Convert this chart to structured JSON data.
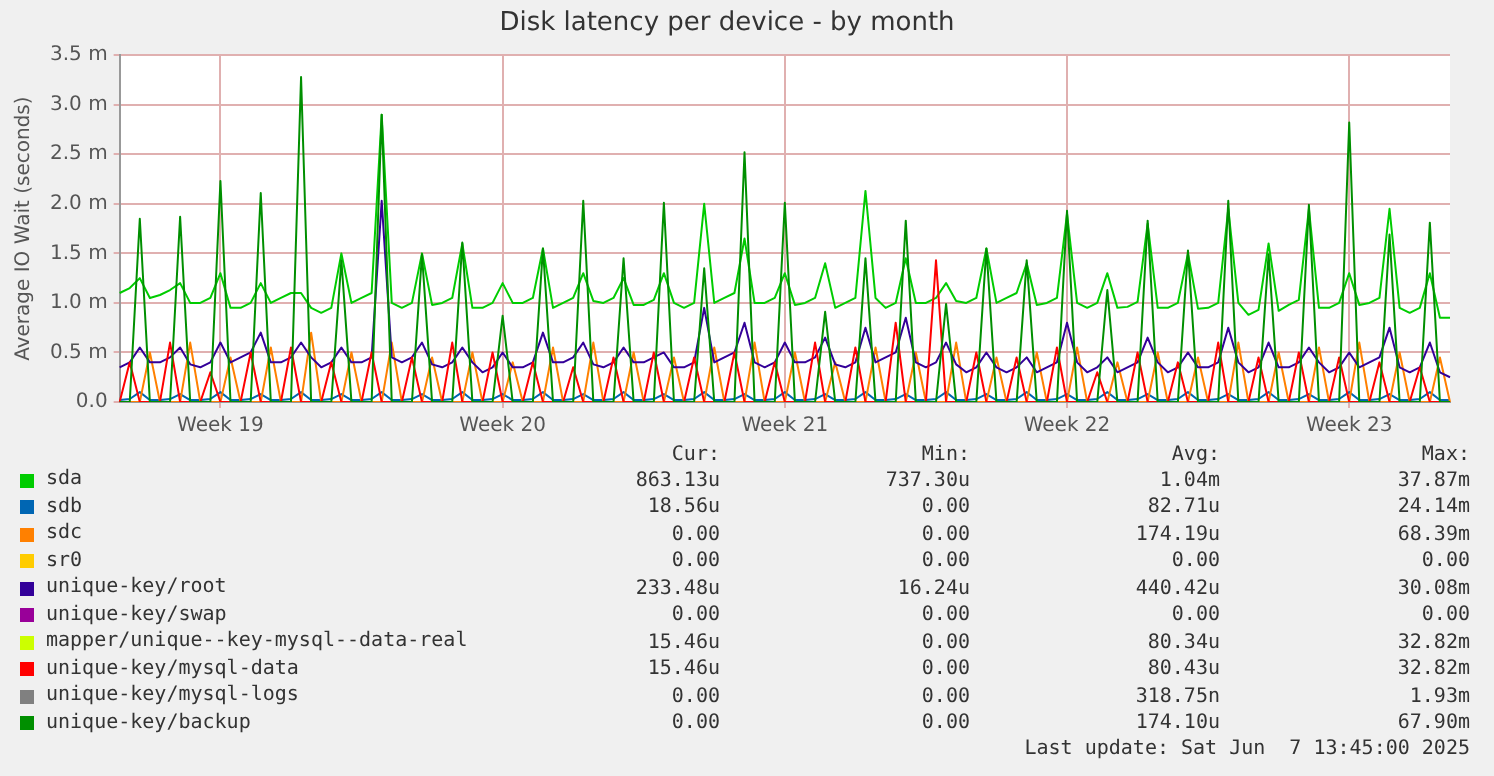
{
  "chart_data": {
    "type": "line",
    "title": "Disk latency per device - by month",
    "ylabel": "Average IO Wait (seconds)",
    "categories": [
      null,
      null,
      null,
      null,
      null,
      null,
      null,
      null,
      null,
      null,
      "Week 19",
      null,
      null,
      null,
      null,
      null,
      null,
      null,
      null,
      null,
      null,
      null,
      null,
      null,
      null,
      null,
      null,
      null,
      null,
      null,
      null,
      null,
      null,
      null,
      null,
      null,
      null,
      null,
      "Week 20",
      null,
      null,
      null,
      null,
      null,
      null,
      null,
      null,
      null,
      null,
      null,
      null,
      null,
      null,
      null,
      null,
      null,
      null,
      null,
      null,
      null,
      null,
      null,
      null,
      null,
      null,
      null,
      "Week 21",
      null,
      null,
      null,
      null,
      null,
      null,
      null,
      null,
      null,
      null,
      null,
      null,
      null,
      null,
      null,
      null,
      null,
      null,
      null,
      null,
      null,
      null,
      null,
      null,
      null,
      null,
      null,
      "Week 22",
      null,
      null,
      null,
      null,
      null,
      null,
      null,
      null,
      null,
      null,
      null,
      null,
      null,
      null,
      null,
      null,
      null,
      null,
      null,
      null,
      null,
      null,
      null,
      null,
      null,
      null,
      null,
      "Week 23",
      null,
      null,
      null,
      null,
      null,
      null,
      null,
      null,
      null,
      null
    ],
    "series": [
      {
        "name": "sda",
        "color": "#00cc00",
        "values": [
          1.1,
          1.15,
          1.25,
          1.05,
          1.08,
          1.13,
          1.2,
          1.0,
          1.0,
          1.05,
          1.3,
          0.95,
          0.95,
          1.0,
          1.2,
          1.0,
          1.05,
          1.1,
          1.1,
          0.95,
          0.9,
          0.95,
          1.5,
          1.0,
          1.05,
          1.1,
          2.9,
          1.0,
          0.95,
          1.0,
          1.5,
          0.98,
          1.0,
          1.05,
          1.6,
          0.95,
          0.95,
          1.0,
          1.2,
          1.0,
          1.0,
          1.05,
          1.55,
          0.95,
          1.0,
          1.05,
          1.3,
          1.02,
          1.0,
          1.05,
          1.25,
          0.98,
          0.98,
          1.03,
          1.3,
          1.0,
          0.95,
          1.0,
          2.0,
          1.0,
          1.05,
          1.1,
          1.65,
          1.0,
          1.0,
          1.05,
          1.3,
          0.98,
          1.0,
          1.05,
          1.4,
          0.95,
          1.0,
          1.05,
          2.13,
          1.05,
          0.95,
          1.0,
          1.45,
          1.0,
          1.0,
          1.05,
          1.2,
          1.02,
          1.0,
          1.05,
          1.55,
          1.0,
          1.05,
          1.1,
          1.4,
          0.98,
          1.0,
          1.05,
          1.9,
          1.0,
          0.95,
          1.0,
          1.3,
          0.95,
          0.96,
          1.01,
          1.8,
          0.95,
          0.95,
          1.0,
          1.5,
          0.94,
          0.95,
          1.0,
          1.95,
          1.0,
          0.88,
          0.93,
          1.6,
          0.92,
          0.98,
          1.03,
          1.95,
          0.95,
          0.95,
          1.0,
          1.3,
          0.98,
          1.0,
          1.05,
          1.95,
          0.95,
          0.9,
          0.95,
          1.3,
          0.85,
          0.85
        ]
      },
      {
        "name": "sdb",
        "color": "#0066b3",
        "values": [
          0.02,
          0.03,
          0.1,
          0.02,
          0.02,
          0.03,
          0.08,
          0.02,
          0.02,
          0.03,
          0.1,
          0.02,
          0.02,
          0.03,
          0.08,
          0.02,
          0.02,
          0.03,
          0.1,
          0.02,
          0.02,
          0.03,
          0.08,
          0.02,
          0.02,
          0.03,
          0.1,
          0.02,
          0.02,
          0.03,
          0.08,
          0.02,
          0.02,
          0.03,
          0.1,
          0.02,
          0.02,
          0.03,
          0.08,
          0.02,
          0.02,
          0.03,
          0.1,
          0.02,
          0.02,
          0.03,
          0.08,
          0.02,
          0.02,
          0.03,
          0.1,
          0.02,
          0.02,
          0.03,
          0.08,
          0.02,
          0.02,
          0.03,
          0.1,
          0.02,
          0.02,
          0.03,
          0.08,
          0.02,
          0.02,
          0.03,
          0.1,
          0.02,
          0.02,
          0.03,
          0.08,
          0.02,
          0.02,
          0.03,
          0.1,
          0.02,
          0.02,
          0.03,
          0.08,
          0.02,
          0.02,
          0.03,
          0.1,
          0.02,
          0.02,
          0.03,
          0.08,
          0.02,
          0.02,
          0.03,
          0.1,
          0.02,
          0.02,
          0.03,
          0.08,
          0.02,
          0.02,
          0.03,
          0.1,
          0.02,
          0.02,
          0.03,
          0.08,
          0.02,
          0.02,
          0.03,
          0.1,
          0.02,
          0.02,
          0.03,
          0.08,
          0.02,
          0.02,
          0.03,
          0.1,
          0.02,
          0.02,
          0.03,
          0.08,
          0.02,
          0.02,
          0.03,
          0.1,
          0.02,
          0.02,
          0.03,
          0.08,
          0.02,
          0.02,
          0.03,
          0.1,
          0.02,
          0.02
        ]
      },
      {
        "name": "sdc",
        "color": "#ff8000",
        "values": [
          0,
          0,
          0,
          0.5,
          0,
          0,
          0,
          0.6,
          0,
          0,
          0,
          0.45,
          0,
          0,
          0,
          0.55,
          0,
          0,
          0,
          0.7,
          0,
          0,
          0,
          0.5,
          0,
          0,
          0,
          0.6,
          0,
          0,
          0,
          0.45,
          0,
          0,
          0,
          0.5,
          0,
          0,
          0,
          0.4,
          0,
          0,
          0,
          0.55,
          0,
          0,
          0,
          0.6,
          0,
          0,
          0,
          0.5,
          0,
          0,
          0,
          0.45,
          0,
          0,
          0,
          0.55,
          0,
          0,
          0,
          0.6,
          0,
          0,
          0,
          0.5,
          0,
          0,
          0,
          0.4,
          0,
          0,
          0,
          0.55,
          0,
          0,
          0,
          0.5,
          0,
          0,
          0,
          0.6,
          0,
          0,
          0,
          0.45,
          0,
          0,
          0,
          0.5,
          0,
          0,
          0,
          0.55,
          0,
          0,
          0,
          0.4,
          0,
          0,
          0,
          0.5,
          0,
          0,
          0,
          0.45,
          0,
          0,
          0,
          0.6,
          0,
          0,
          0,
          0.5,
          0,
          0,
          0,
          0.55,
          0,
          0,
          0,
          0.6,
          0,
          0,
          0,
          0.5,
          0,
          0,
          0,
          0.45,
          0
        ]
      },
      {
        "name": "sr0",
        "color": "#ffcc00",
        "values": [
          null,
          null,
          null,
          null,
          null,
          null,
          null,
          null,
          null,
          null,
          null,
          null,
          null,
          null,
          null,
          null,
          null,
          null,
          null,
          null,
          null,
          null,
          null,
          null,
          null,
          null,
          null,
          null,
          null,
          null,
          null,
          null,
          null,
          null,
          null,
          null,
          null,
          null,
          null,
          null,
          null,
          null,
          null,
          null,
          null,
          null,
          null,
          null,
          null,
          null,
          null,
          null,
          null,
          null,
          null,
          null,
          null,
          null,
          null,
          null,
          null,
          null,
          null,
          null,
          null,
          null,
          null,
          null,
          null,
          null,
          null,
          null,
          null,
          null,
          null,
          null,
          null,
          null,
          null,
          null,
          null,
          null,
          null,
          null,
          null,
          null,
          null,
          null,
          null,
          null,
          null,
          null,
          null,
          null,
          null,
          null,
          null,
          null,
          null,
          null,
          null,
          null,
          null,
          null,
          null,
          null,
          null,
          null,
          null,
          null,
          null,
          null,
          null,
          null,
          null,
          null,
          null,
          null,
          null,
          null,
          null,
          null,
          null,
          null,
          null,
          null,
          null,
          null,
          null,
          null,
          null,
          null,
          null
        ]
      },
      {
        "name": "unique-key/root",
        "color": "#330099",
        "values": [
          0.35,
          0.4,
          0.55,
          0.4,
          0.4,
          0.45,
          0.55,
          0.38,
          0.35,
          0.4,
          0.6,
          0.4,
          0.45,
          0.5,
          0.7,
          0.4,
          0.4,
          0.45,
          0.6,
          0.45,
          0.35,
          0.4,
          0.55,
          0.4,
          0.4,
          0.45,
          2.03,
          0.45,
          0.4,
          0.45,
          0.6,
          0.38,
          0.35,
          0.4,
          0.55,
          0.4,
          0.3,
          0.35,
          0.5,
          0.35,
          0.35,
          0.4,
          0.7,
          0.4,
          0.4,
          0.45,
          0.6,
          0.38,
          0.35,
          0.4,
          0.55,
          0.4,
          0.4,
          0.45,
          0.5,
          0.35,
          0.35,
          0.4,
          0.95,
          0.4,
          0.45,
          0.5,
          0.8,
          0.4,
          0.35,
          0.4,
          0.6,
          0.4,
          0.4,
          0.45,
          0.65,
          0.38,
          0.35,
          0.4,
          0.75,
          0.4,
          0.45,
          0.5,
          0.85,
          0.4,
          0.35,
          0.4,
          0.6,
          0.38,
          0.3,
          0.35,
          0.5,
          0.35,
          0.3,
          0.35,
          0.45,
          0.3,
          0.35,
          0.4,
          0.8,
          0.4,
          0.3,
          0.35,
          0.45,
          0.3,
          0.35,
          0.4,
          0.65,
          0.4,
          0.3,
          0.35,
          0.5,
          0.35,
          0.35,
          0.4,
          0.75,
          0.4,
          0.3,
          0.35,
          0.6,
          0.35,
          0.35,
          0.4,
          0.55,
          0.4,
          0.3,
          0.35,
          0.5,
          0.35,
          0.4,
          0.45,
          0.75,
          0.35,
          0.3,
          0.35,
          0.6,
          0.3,
          0.25
        ]
      },
      {
        "name": "unique-key/swap",
        "color": "#990099",
        "values": [
          null,
          null,
          null,
          null,
          null,
          null,
          null,
          null,
          null,
          null,
          null,
          null,
          null,
          null,
          null,
          null,
          null,
          null,
          null,
          null,
          null,
          null,
          null,
          null,
          null,
          null,
          null,
          null,
          null,
          null,
          null,
          null,
          null,
          null,
          null,
          null,
          null,
          null,
          null,
          null,
          null,
          null,
          null,
          null,
          null,
          null,
          null,
          null,
          null,
          null,
          null,
          null,
          null,
          null,
          null,
          null,
          null,
          null,
          null,
          null,
          null,
          null,
          null,
          null,
          null,
          null,
          null,
          null,
          null,
          null,
          null,
          null,
          null,
          null,
          null,
          null,
          null,
          null,
          null,
          null,
          null,
          null,
          null,
          null,
          null,
          null,
          null,
          null,
          null,
          null,
          null,
          null,
          null,
          null,
          null,
          null,
          null,
          null,
          null,
          null,
          null,
          null,
          null,
          null,
          null,
          null,
          null,
          null,
          null,
          null,
          null,
          null,
          null,
          null,
          null,
          null,
          null,
          null,
          null,
          null,
          null,
          null,
          null,
          null,
          null,
          null,
          null,
          null,
          null,
          null,
          null,
          null,
          null
        ]
      },
      {
        "name": "mapper/unique--key-mysql--data-real",
        "color": "#ccff00",
        "values": [
          null,
          null,
          null,
          null,
          null,
          null,
          null,
          null,
          null,
          null,
          null,
          null,
          null,
          null,
          null,
          null,
          null,
          null,
          null,
          null,
          null,
          null,
          null,
          null,
          null,
          null,
          null,
          null,
          null,
          null,
          null,
          null,
          null,
          null,
          null,
          null,
          null,
          null,
          null,
          null,
          null,
          null,
          null,
          null,
          null,
          null,
          null,
          null,
          null,
          null,
          null,
          null,
          null,
          null,
          null,
          null,
          null,
          null,
          null,
          null,
          null,
          null,
          null,
          null,
          null,
          null,
          null,
          null,
          null,
          null,
          null,
          null,
          null,
          null,
          null,
          null,
          null,
          null,
          null,
          null,
          null,
          null,
          null,
          null,
          null,
          null,
          null,
          null,
          null,
          null,
          null,
          null,
          null,
          null,
          null,
          null,
          null,
          null,
          null,
          null,
          null,
          null,
          null,
          null,
          null,
          null,
          null,
          null,
          null,
          null,
          null,
          null,
          null,
          null,
          null,
          null,
          null,
          null,
          null,
          null,
          null,
          null,
          null,
          null,
          null,
          null,
          null,
          null,
          null,
          null,
          null,
          null,
          null
        ]
      },
      {
        "name": "unique-key/mysql-data",
        "color": "#ff0000",
        "values": [
          0,
          0.4,
          0,
          0,
          0,
          0.6,
          0,
          0,
          0,
          0.3,
          0,
          0,
          0,
          0.5,
          0,
          0,
          0,
          0.55,
          0,
          0,
          0,
          0.4,
          0,
          0,
          0,
          0.5,
          0,
          0,
          0,
          0.45,
          0,
          0,
          0,
          0.6,
          0,
          0,
          0,
          0.5,
          0,
          0,
          0,
          0.4,
          0,
          0,
          0,
          0.35,
          0,
          0,
          0,
          0.45,
          0,
          0,
          0,
          0.5,
          0,
          0,
          0,
          0.45,
          0,
          0,
          0,
          0.5,
          0,
          0,
          0,
          0.4,
          0,
          0,
          0,
          0.6,
          0,
          0,
          0,
          0.55,
          0,
          0,
          0,
          0.8,
          0,
          0,
          0,
          1.43,
          0,
          0,
          0,
          0.5,
          0,
          0,
          0,
          0.45,
          0,
          0,
          0,
          0.55,
          0,
          0,
          0,
          0.3,
          0,
          0,
          0,
          0.5,
          0,
          0,
          0,
          0.4,
          0,
          0,
          0,
          0.6,
          0,
          0,
          0,
          0.45,
          0,
          0,
          0,
          0.5,
          0,
          0,
          0,
          0.45,
          0,
          0,
          0,
          0.4,
          0,
          0,
          0,
          0.35,
          0,
          0,
          0
        ]
      },
      {
        "name": "unique-key/mysql-logs",
        "color": "#808080",
        "values": [
          null,
          null,
          null,
          null,
          null,
          null,
          null,
          null,
          null,
          null,
          null,
          null,
          null,
          null,
          null,
          null,
          null,
          null,
          null,
          null,
          null,
          null,
          null,
          null,
          null,
          null,
          null,
          null,
          null,
          null,
          null,
          null,
          null,
          null,
          null,
          null,
          null,
          null,
          null,
          null,
          null,
          null,
          null,
          null,
          null,
          null,
          null,
          null,
          null,
          null,
          null,
          null,
          null,
          null,
          null,
          null,
          null,
          null,
          null,
          null,
          null,
          null,
          null,
          null,
          null,
          null,
          null,
          null,
          null,
          null,
          null,
          null,
          null,
          null,
          null,
          null,
          null,
          null,
          null,
          null,
          null,
          null,
          null,
          null,
          null,
          null,
          null,
          null,
          null,
          null,
          null,
          null,
          null,
          null,
          null,
          null,
          null,
          null,
          null,
          null,
          null,
          null,
          null,
          null,
          null,
          null,
          null,
          null,
          null,
          null,
          null,
          null,
          null,
          null,
          null,
          null,
          null,
          null,
          null,
          null,
          null,
          null,
          null,
          null,
          null,
          null,
          null,
          null,
          null,
          null,
          null,
          null,
          null
        ]
      },
      {
        "name": "unique-key/backup",
        "color": "#008f00",
        "values": [
          0,
          0,
          1.85,
          0,
          0,
          0,
          1.87,
          0,
          0,
          0,
          2.23,
          0,
          0,
          0,
          2.11,
          0,
          0,
          0,
          3.28,
          0,
          0,
          0,
          1.43,
          0,
          0,
          0,
          2.9,
          0,
          0,
          0,
          1.49,
          0,
          0,
          0,
          1.61,
          0,
          0,
          0,
          0.87,
          0,
          0,
          0,
          1.55,
          0,
          0,
          0,
          2.03,
          0,
          0,
          0,
          1.45,
          0,
          0,
          0,
          2.01,
          0,
          0,
          0,
          1.35,
          0,
          0,
          0,
          2.52,
          0,
          0,
          0,
          2.01,
          0,
          0,
          0,
          0.91,
          0,
          0,
          0,
          1.45,
          0,
          0,
          0,
          1.83,
          0,
          0,
          0,
          0.99,
          0,
          0,
          0,
          1.55,
          0,
          0,
          0,
          1.43,
          0,
          0,
          0,
          1.93,
          0,
          0,
          0,
          1.13,
          0,
          0,
          0,
          1.83,
          0,
          0,
          0,
          1.53,
          0,
          0,
          0,
          2.03,
          0,
          0,
          0,
          1.49,
          0,
          0,
          0,
          1.99,
          0,
          0,
          0,
          2.82,
          0,
          0,
          0,
          1.69,
          0,
          0,
          0,
          1.81,
          0,
          0
        ]
      }
    ],
    "ylim": [
      0,
      3.5
    ],
    "yticks": [
      {
        "value": 0,
        "label": "0.0"
      },
      {
        "value": 0.5,
        "label": "0.5 m"
      },
      {
        "value": 1,
        "label": "1.0 m"
      },
      {
        "value": 1.5,
        "label": "1.5 m"
      },
      {
        "value": 2,
        "label": "2.0 m"
      },
      {
        "value": 2.5,
        "label": "2.5 m"
      },
      {
        "value": 3,
        "label": "3.0 m"
      },
      {
        "value": 3.5,
        "label": "3.5 m"
      }
    ],
    "grid": true,
    "legend": "bottom",
    "marker": "none",
    "line_style": "solid",
    "annotations": [
      "Cur:",
      "Min:",
      "Avg:",
      "Max:",
      "863.13u",
      "737.30u",
      "1.04m",
      "37.87m",
      "18.56u",
      "0.00",
      "82.71u",
      "24.14m",
      "0.00",
      "0.00",
      "174.19u",
      "68.39m",
      "0.00",
      "0.00",
      "0.00",
      "0.00",
      "233.48u",
      "16.24u",
      "440.42u",
      "30.08m",
      "0.00",
      "0.00",
      "0.00",
      "0.00",
      "15.46u",
      "0.00",
      "80.34u",
      "32.82m",
      "15.46u",
      "0.00",
      "80.43u",
      "32.82m",
      "0.00",
      "0.00",
      "318.75n",
      "1.93m",
      "0.00",
      "0.00",
      "174.10u",
      "67.90m",
      "Last update: Sat Jun  7 13:45:00 2025"
    ]
  }
}
